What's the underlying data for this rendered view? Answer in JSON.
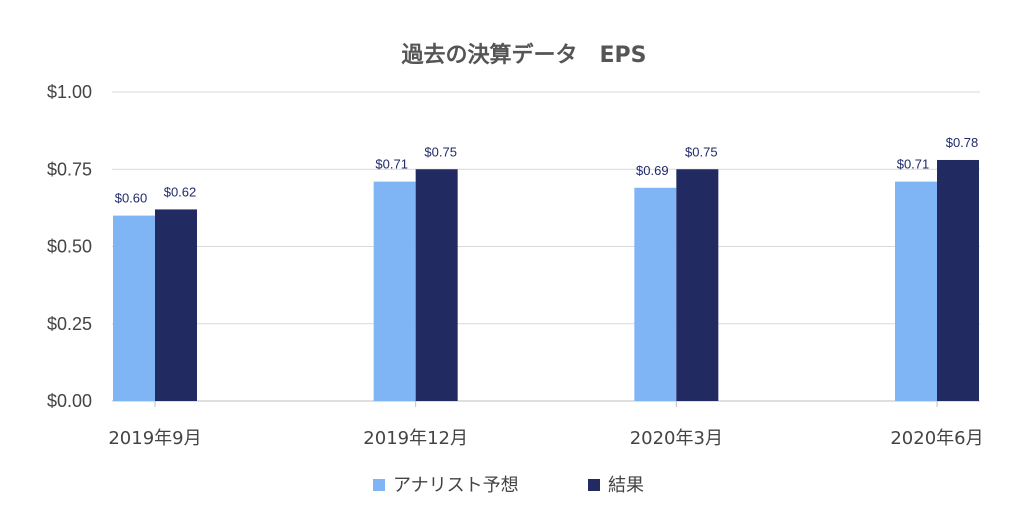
{
  "chart_data": {
    "type": "bar",
    "title": "過去の決算データ　EPS",
    "xlabel": "",
    "ylabel": "",
    "categories": [
      "2019年9月",
      "2019年12月",
      "2020年3月",
      "2020年6月"
    ],
    "series": [
      {
        "name": "アナリスト予想",
        "color": "#7fb4f5",
        "values": [
          0.6,
          0.71,
          0.69,
          0.71
        ],
        "labels": [
          "$0.60",
          "$0.71",
          "$0.69",
          "$0.71"
        ]
      },
      {
        "name": "結果",
        "color": "#222a62",
        "values": [
          0.62,
          0.75,
          0.75,
          0.78
        ],
        "labels": [
          "$0.62",
          "$0.75",
          "$0.75",
          "$0.78"
        ]
      }
    ],
    "ylim": [
      0,
      1
    ],
    "yticks": [
      0,
      0.25,
      0.5,
      0.75,
      1.0
    ],
    "ytick_labels": [
      "$0.00",
      "$0.25",
      "$0.50",
      "$0.75",
      "$1.00"
    ],
    "grid": true,
    "legend": "bottom"
  }
}
